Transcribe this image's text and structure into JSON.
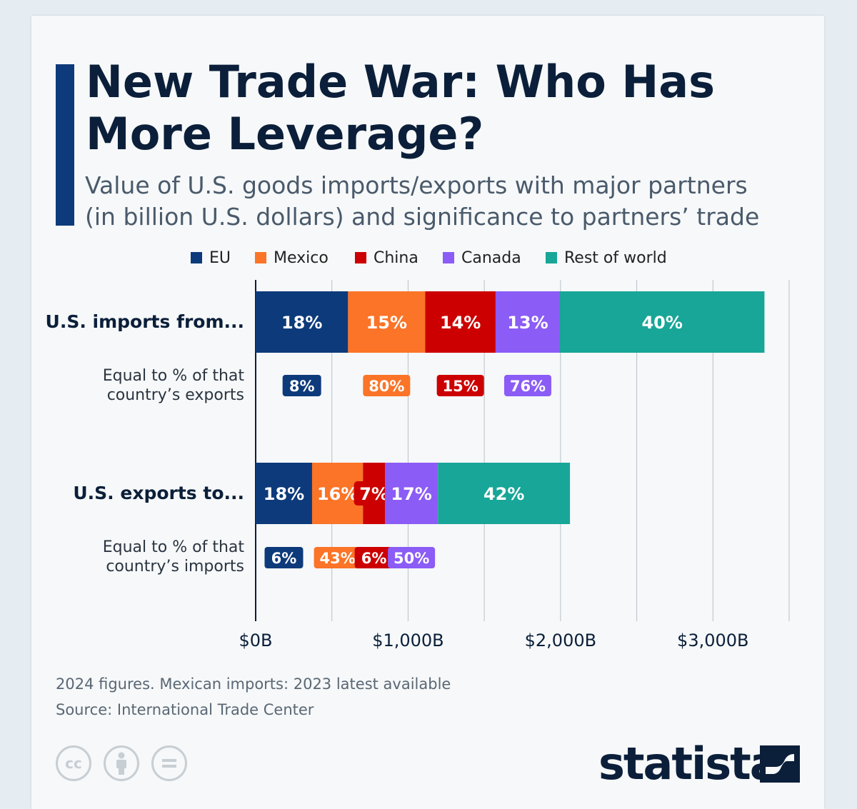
{
  "title": "New Trade War: Who Has More Leverage?",
  "subtitle_line1": "Value of U.S. goods imports/exports with major partners",
  "subtitle_line2": "(in billion U.S. dollars) and significance to partners’ trade",
  "colors": {
    "eu": "#0d3a7a",
    "mexico": "#fb7427",
    "china": "#cc0000",
    "canada": "#8b5cf6",
    "rest": "#17a697",
    "text_dark": "#0b1f3a"
  },
  "row_labels": {
    "imports": "U.S. imports from...",
    "imports_sub_line1": "Equal to % of that",
    "imports_sub_line2": "country’s exports",
    "exports": "U.S. exports to...",
    "exports_sub_line1": "Equal to % of that",
    "exports_sub_line2": "country’s imports"
  },
  "footer": {
    "note": "2024 figures. Mexican imports: 2023 latest available",
    "source": "Source: International Trade Center"
  },
  "logo": {
    "text": "statista"
  },
  "cc_icons": [
    "cc-icon",
    "attribution-icon",
    "no-derivatives-icon"
  ],
  "chart_data": {
    "type": "bar",
    "orientation": "horizontal",
    "stacked": true,
    "categories": [
      "U.S. imports from...",
      "U.S. exports to..."
    ],
    "series": [
      {
        "name": "EU",
        "values": [
          606,
          370
        ],
        "share_labels": [
          "18%",
          "18%"
        ],
        "partner_share_labels": [
          "8%",
          "6%"
        ]
      },
      {
        "name": "Mexico",
        "values": [
          506,
          334
        ],
        "share_labels": [
          "15%",
          "16%"
        ],
        "partner_share_labels": [
          "80%",
          "43%"
        ]
      },
      {
        "name": "China",
        "values": [
          462,
          144
        ],
        "share_labels": [
          "14%",
          "7%"
        ],
        "partner_share_labels": [
          "15%",
          "6%"
        ]
      },
      {
        "name": "Canada",
        "values": [
          422,
          348
        ],
        "share_labels": [
          "13%",
          "17%"
        ],
        "partner_share_labels": [
          "76%",
          "50%"
        ]
      },
      {
        "name": "Rest of world",
        "values": [
          1342,
          866
        ],
        "share_labels": [
          "40%",
          "42%"
        ],
        "partner_share_labels": [
          "",
          ""
        ]
      }
    ],
    "xlim": [
      0,
      3500
    ],
    "x_ticks": [
      0,
      1000,
      2000,
      3000
    ],
    "x_tick_labels": [
      "$0B",
      "$1,000B",
      "$2,000B",
      "$3,000B"
    ],
    "gridlines": [
      0,
      500,
      1000,
      1500,
      2000,
      2500,
      3000,
      3500
    ],
    "legend": [
      "EU",
      "Mexico",
      "China",
      "Canada",
      "Rest of world"
    ],
    "legend_position": "top"
  }
}
